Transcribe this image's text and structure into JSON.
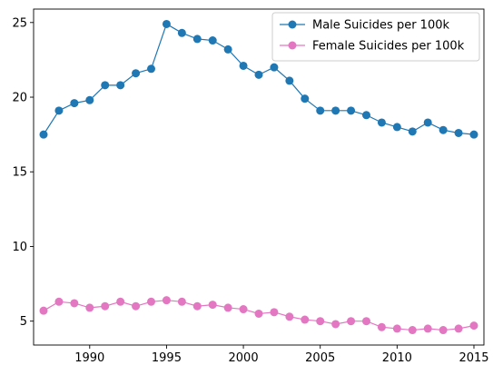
{
  "chart_data": {
    "type": "line",
    "title": "",
    "xlabel": "",
    "ylabel": "",
    "xlim": [
      1986.35,
      2015.65
    ],
    "ylim": [
      3.4,
      25.9
    ],
    "grid": false,
    "legend_position": "top-right",
    "x": [
      1987,
      1988,
      1989,
      1990,
      1991,
      1992,
      1993,
      1994,
      1995,
      1996,
      1997,
      1998,
      1999,
      2000,
      2001,
      2002,
      2003,
      2004,
      2005,
      2006,
      2007,
      2008,
      2009,
      2010,
      2011,
      2012,
      2013,
      2014,
      2015
    ],
    "x_ticks": [
      1990,
      1995,
      2000,
      2005,
      2010,
      2015
    ],
    "x_tick_labels": [
      "1990",
      "1995",
      "2000",
      "2005",
      "2010",
      "2015"
    ],
    "y_ticks": [
      5,
      10,
      15,
      20,
      25
    ],
    "y_tick_labels": [
      "5",
      "10",
      "15",
      "20",
      "25"
    ],
    "series": [
      {
        "name": "Male Suicides per 100k",
        "color": "#1f77b4",
        "values": [
          17.5,
          19.1,
          19.6,
          19.8,
          20.8,
          20.8,
          21.6,
          21.9,
          24.9,
          24.3,
          23.9,
          23.8,
          23.2,
          22.1,
          21.5,
          22.0,
          21.1,
          19.9,
          19.1,
          19.1,
          19.1,
          18.8,
          18.3,
          18.0,
          17.7,
          18.3,
          17.8,
          17.6,
          17.5
        ]
      },
      {
        "name": "Female Suicides per 100k",
        "color": "#e377c2",
        "values": [
          5.7,
          6.3,
          6.2,
          5.9,
          6.0,
          6.3,
          6.0,
          6.3,
          6.4,
          6.3,
          6.0,
          6.1,
          5.9,
          5.8,
          5.5,
          5.6,
          5.3,
          5.1,
          5.0,
          4.8,
          5.0,
          5.0,
          4.6,
          4.5,
          4.4,
          4.5,
          4.4,
          4.5,
          4.7
        ]
      }
    ]
  }
}
